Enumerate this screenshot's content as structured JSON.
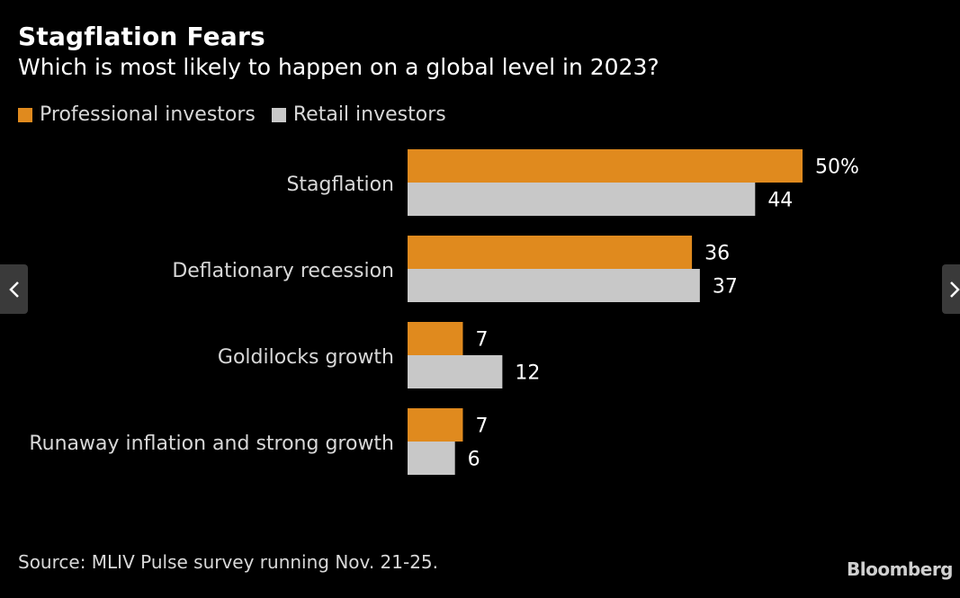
{
  "chart_data": {
    "type": "bar",
    "orientation": "horizontal",
    "title": "Stagflation Fears",
    "subtitle": "Which is most likely to happen on a global level in 2023?",
    "categories": [
      "Stagflation",
      "Deflationary recession",
      "Goldilocks growth",
      "Runaway inflation and strong growth"
    ],
    "series": [
      {
        "name": "Professional investors",
        "values": [
          50,
          36,
          7,
          7
        ],
        "color": "#e08a1e"
      },
      {
        "name": "Retail investors",
        "values": [
          44,
          37,
          12,
          6
        ],
        "color": "#c8c8c8"
      }
    ],
    "value_labels": {
      "Professional investors": [
        "50%",
        "36",
        "7",
        "7"
      ],
      "Retail investors": [
        "44",
        "37",
        "12",
        "6"
      ]
    },
    "xlim": [
      0,
      50
    ],
    "legend_position": "top-left",
    "grid": false
  },
  "header": {
    "title": "Stagflation Fears",
    "subtitle": "Which is most likely to happen on a global level in 2023?"
  },
  "legend": {
    "professional": "Professional investors",
    "retail": "Retail investors"
  },
  "footer": {
    "source": "Source: MLIV Pulse survey running Nov. 21-25.",
    "brand": "Bloomberg"
  },
  "colors": {
    "professional": "#e08a1e",
    "retail": "#c8c8c8",
    "background": "#000000"
  },
  "nav": {
    "prev_icon": "chevron-left-icon",
    "next_icon": "chevron-right-icon"
  }
}
